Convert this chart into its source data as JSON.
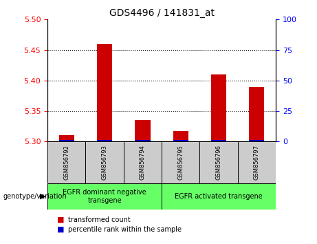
{
  "title": "GDS4496 / 141831_at",
  "samples": [
    "GSM856792",
    "GSM856793",
    "GSM856794",
    "GSM856795",
    "GSM856796",
    "GSM856797"
  ],
  "red_values": [
    5.31,
    5.46,
    5.335,
    5.317,
    5.41,
    5.39
  ],
  "blue_values": [
    1,
    1,
    1,
    1,
    1,
    1
  ],
  "ymin": 5.3,
  "ymax": 5.5,
  "yticks_left": [
    5.3,
    5.35,
    5.4,
    5.45,
    5.5
  ],
  "yticks_right": [
    0,
    25,
    50,
    75,
    100
  ],
  "group1_label": "EGFR dominant negative\ntransgene",
  "group2_label": "EGFR activated transgene",
  "group1_samples": [
    0,
    1,
    2
  ],
  "group2_samples": [
    3,
    4,
    5
  ],
  "genotype_label": "genotype/variation",
  "legend_red": "transformed count",
  "legend_blue": "percentile rank within the sample",
  "bar_color_red": "#cc0000",
  "bar_color_blue": "#0000cc",
  "group_bg_color": "#66ff66",
  "sample_bg_color": "#cccccc",
  "bar_width": 0.4,
  "blue_bar_height": 0.003,
  "base_value": 5.3
}
